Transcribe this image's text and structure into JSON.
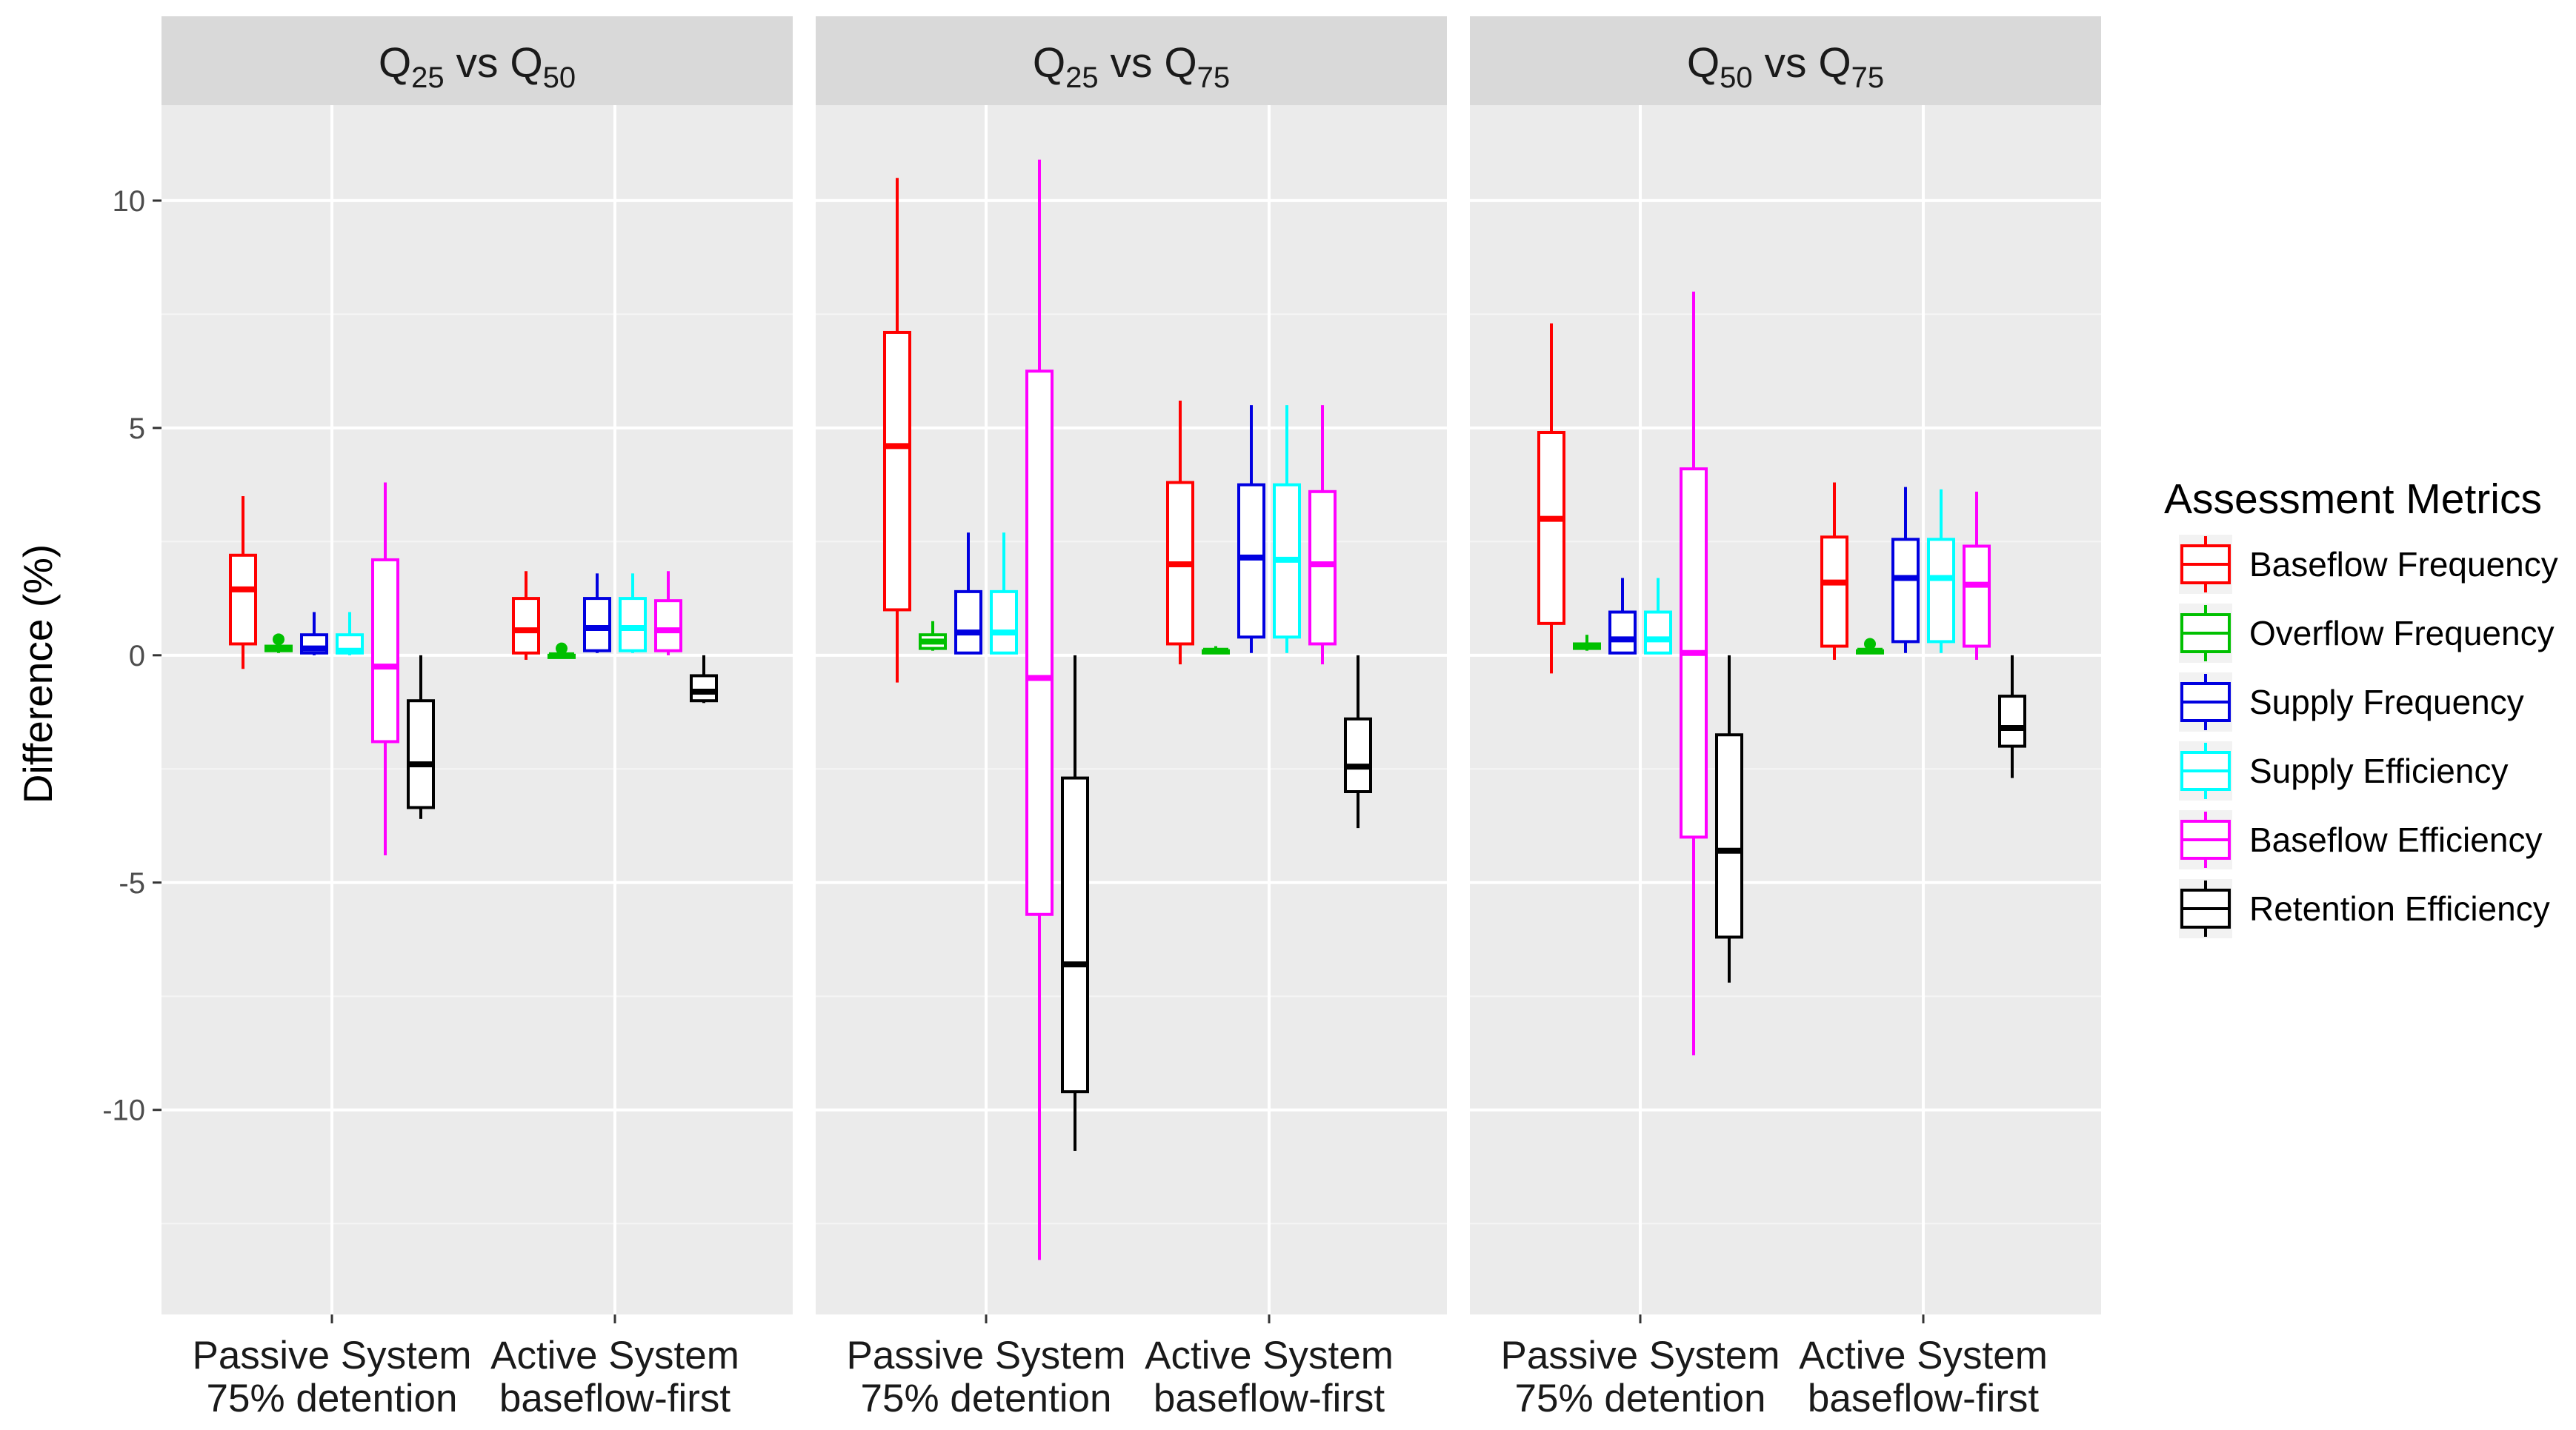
{
  "chart_data": {
    "type": "boxplot",
    "ylabel": "Difference (%)",
    "ylim": [
      -14.5,
      12.1
    ],
    "y_ticks": [
      10,
      5,
      0,
      -5,
      -10
    ],
    "y_tick_labels": [
      "10",
      "5",
      "0",
      "-5",
      "-10"
    ],
    "categories": [
      {
        "line1": "Passive System",
        "line2": "75% detention"
      },
      {
        "line1": "Active System",
        "line2": "baseflow-first"
      }
    ],
    "legend": {
      "title": "Assessment Metrics",
      "position": "right"
    },
    "series": [
      {
        "name": "Baseflow Frequency",
        "color": "#ff0000"
      },
      {
        "name": "Overflow Frequency",
        "color": "#00c000"
      },
      {
        "name": "Supply Frequency",
        "color": "#0000e0"
      },
      {
        "name": "Supply Efficiency",
        "color": "#00ffff"
      },
      {
        "name": "Baseflow Efficiency",
        "color": "#ff00ff"
      },
      {
        "name": "Retention Efficiency",
        "color": "#000000"
      }
    ],
    "panels": [
      {
        "title": "Q",
        "sub_a": "25",
        "mid": " vs Q",
        "sub_b": "50",
        "groups": [
          [
            {
              "min": -0.3,
              "q1": 0.25,
              "median": 1.45,
              "q3": 2.2,
              "max": 3.5
            },
            {
              "min": 0.05,
              "q1": 0.1,
              "median": 0.15,
              "q3": 0.2,
              "max": 0.3,
              "outliers": [
                0.35
              ]
            },
            {
              "min": 0.0,
              "q1": 0.05,
              "median": 0.15,
              "q3": 0.45,
              "max": 0.95
            },
            {
              "min": 0.0,
              "q1": 0.05,
              "median": 0.1,
              "q3": 0.45,
              "max": 0.95
            },
            {
              "min": -4.4,
              "q1": -1.9,
              "median": -0.25,
              "q3": 2.1,
              "max": 3.8
            },
            {
              "min": -3.6,
              "q1": -3.35,
              "median": -2.4,
              "q3": -1.0,
              "max": 0.0
            }
          ],
          [
            {
              "min": -0.1,
              "q1": 0.05,
              "median": 0.55,
              "q3": 1.25,
              "max": 1.85
            },
            {
              "min": -0.05,
              "q1": -0.05,
              "median": 0.0,
              "q3": 0.0,
              "max": 0.05,
              "outliers": [
                0.15
              ]
            },
            {
              "min": 0.05,
              "q1": 0.1,
              "median": 0.6,
              "q3": 1.25,
              "max": 1.8
            },
            {
              "min": 0.05,
              "q1": 0.1,
              "median": 0.6,
              "q3": 1.25,
              "max": 1.8
            },
            {
              "min": 0.0,
              "q1": 0.1,
              "median": 0.55,
              "q3": 1.2,
              "max": 1.85
            },
            {
              "min": -1.05,
              "q1": -1.0,
              "median": -0.8,
              "q3": -0.45,
              "max": 0.0
            }
          ]
        ]
      },
      {
        "title": "Q",
        "sub_a": "25",
        "mid": " vs Q",
        "sub_b": "75",
        "groups": [
          [
            {
              "min": -0.6,
              "q1": 1.0,
              "median": 4.6,
              "q3": 7.1,
              "max": 10.5
            },
            {
              "min": 0.1,
              "q1": 0.15,
              "median": 0.3,
              "q3": 0.45,
              "max": 0.75
            },
            {
              "min": 0.05,
              "q1": 0.05,
              "median": 0.5,
              "q3": 1.4,
              "max": 2.7
            },
            {
              "min": 0.05,
              "q1": 0.05,
              "median": 0.5,
              "q3": 1.4,
              "max": 2.7
            },
            {
              "min": -13.3,
              "q1": -5.7,
              "median": -0.5,
              "q3": 6.25,
              "max": 10.9
            },
            {
              "min": -10.9,
              "q1": -9.6,
              "median": -6.8,
              "q3": -2.7,
              "max": 0.0
            }
          ],
          [
            {
              "min": -0.2,
              "q1": 0.25,
              "median": 2.0,
              "q3": 3.8,
              "max": 5.6
            },
            {
              "min": 0.05,
              "q1": 0.05,
              "median": 0.1,
              "q3": 0.1,
              "max": 0.2
            },
            {
              "min": 0.05,
              "q1": 0.4,
              "median": 2.15,
              "q3": 3.75,
              "max": 5.5
            },
            {
              "min": 0.05,
              "q1": 0.4,
              "median": 2.1,
              "q3": 3.75,
              "max": 5.5
            },
            {
              "min": -0.2,
              "q1": 0.25,
              "median": 2.0,
              "q3": 3.6,
              "max": 5.5
            },
            {
              "min": -3.8,
              "q1": -3.0,
              "median": -2.45,
              "q3": -1.4,
              "max": 0.0
            }
          ]
        ]
      },
      {
        "title": "Q",
        "sub_a": "50",
        "mid": " vs Q",
        "sub_b": "75",
        "groups": [
          [
            {
              "min": -0.4,
              "q1": 0.7,
              "median": 3.0,
              "q3": 4.9,
              "max": 7.3
            },
            {
              "min": 0.1,
              "q1": 0.15,
              "median": 0.2,
              "q3": 0.25,
              "max": 0.45
            },
            {
              "min": 0.05,
              "q1": 0.05,
              "median": 0.35,
              "q3": 0.95,
              "max": 1.7
            },
            {
              "min": 0.05,
              "q1": 0.05,
              "median": 0.35,
              "q3": 0.95,
              "max": 1.7
            },
            {
              "min": -8.8,
              "q1": -4.0,
              "median": 0.05,
              "q3": 4.1,
              "max": 8.0
            },
            {
              "min": -7.2,
              "q1": -6.2,
              "median": -4.3,
              "q3": -1.75,
              "max": 0.0
            }
          ],
          [
            {
              "min": -0.1,
              "q1": 0.2,
              "median": 1.6,
              "q3": 2.6,
              "max": 3.8
            },
            {
              "min": 0.05,
              "q1": 0.05,
              "median": 0.1,
              "q3": 0.1,
              "max": 0.15,
              "outliers": [
                0.25
              ]
            },
            {
              "min": 0.05,
              "q1": 0.3,
              "median": 1.7,
              "q3": 2.55,
              "max": 3.7
            },
            {
              "min": 0.05,
              "q1": 0.3,
              "median": 1.7,
              "q3": 2.55,
              "max": 3.65
            },
            {
              "min": -0.1,
              "q1": 0.2,
              "median": 1.55,
              "q3": 2.4,
              "max": 3.6
            },
            {
              "min": -2.7,
              "q1": -2.0,
              "median": -1.6,
              "q3": -0.9,
              "max": 0.0
            }
          ]
        ]
      }
    ]
  }
}
